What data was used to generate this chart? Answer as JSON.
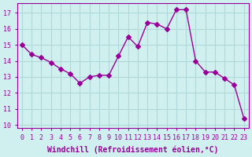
{
  "x": [
    0,
    1,
    2,
    3,
    4,
    5,
    6,
    7,
    8,
    9,
    10,
    11,
    12,
    13,
    14,
    15,
    16,
    17,
    18,
    19,
    20,
    21,
    22,
    23
  ],
  "y": [
    15.0,
    14.4,
    14.2,
    13.9,
    13.5,
    13.2,
    12.6,
    13.0,
    13.1,
    13.1,
    14.3,
    15.5,
    14.9,
    16.4,
    16.3,
    16.0,
    17.2,
    17.2,
    14.0,
    13.3,
    13.3,
    12.9,
    12.5,
    10.4
  ],
  "line_color": "#990099",
  "marker": "D",
  "marker_size": 3,
  "bg_color": "#d0f0f0",
  "grid_color": "#b0d8d8",
  "xlabel": "Windchill (Refroidissement éolien,°C)",
  "yticks": [
    10,
    11,
    12,
    13,
    14,
    15,
    16,
    17
  ],
  "xlim": [
    -0.5,
    23.5
  ],
  "ylim": [
    9.8,
    17.6
  ],
  "label_fontsize": 7,
  "tick_fontsize": 6
}
